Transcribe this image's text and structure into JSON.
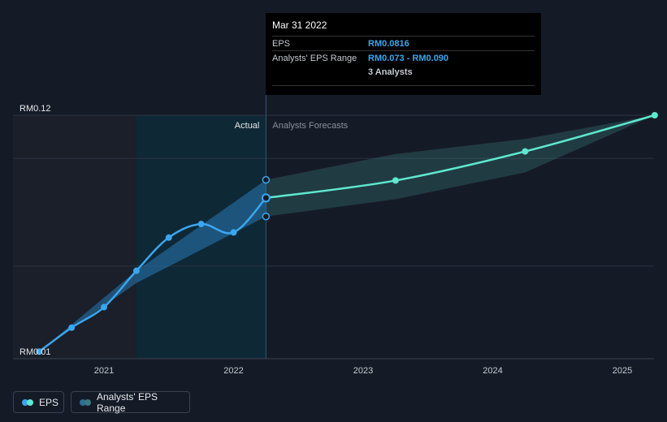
{
  "chart_data": {
    "type": "line",
    "y_tick_labels": [
      "RM0.12",
      "RM0.01"
    ],
    "ylim": [
      0.01,
      0.12
    ],
    "x_ticks": [
      2021,
      2022,
      2023,
      2024,
      2025
    ],
    "x_tick_labels": [
      "2021",
      "2022",
      "2023",
      "2024",
      "2025"
    ],
    "region_labels": {
      "actual": "Actual",
      "forecast": "Analysts Forecasts"
    },
    "series": [
      {
        "name": "EPS",
        "color": "#3aa6ef",
        "x": [
          2020.5,
          2020.75,
          2021.0,
          2021.25,
          2021.5,
          2021.75,
          2022.0,
          2022.25
        ],
        "values": [
          0.0103,
          0.0214,
          0.0309,
          0.0478,
          0.0632,
          0.0695,
          0.0656,
          0.0816
        ]
      },
      {
        "name": "EPS",
        "color": "#5ee8cf",
        "x": [
          2022.25,
          2023.25,
          2024.25,
          2025.25
        ],
        "values": [
          0.0816,
          0.0897,
          0.1032,
          0.12
        ]
      }
    ],
    "range": {
      "name": "Analysts' EPS Range",
      "x": [
        2020.5,
        2021.25,
        2022.25,
        2023.25,
        2024.25,
        2025.25
      ],
      "low": [
        0.0103,
        0.0421,
        0.073,
        0.081,
        0.0935,
        0.12
      ],
      "high": [
        0.0103,
        0.0478,
        0.09,
        0.102,
        0.109,
        0.12
      ]
    },
    "grid": true,
    "legend_position": "bottom-left"
  },
  "tooltip": {
    "date": "Mar 31 2022",
    "eps_label": "EPS",
    "eps_value": "RM0.0816",
    "range_label": "Analysts' EPS Range",
    "range_value": "RM0.073 - RM0.090",
    "analysts": "3 Analysts"
  },
  "legend": {
    "eps_label": "EPS",
    "range_label": "Analysts' EPS Range",
    "eps_colors": [
      "#3aa6ef",
      "#5ee8cf"
    ],
    "range_colors": [
      "#2e6f98",
      "#3a7a80"
    ]
  }
}
